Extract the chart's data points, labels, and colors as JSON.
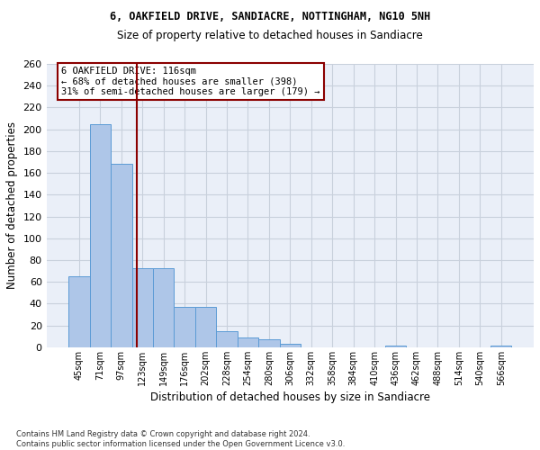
{
  "title1": "6, OAKFIELD DRIVE, SANDIACRE, NOTTINGHAM, NG10 5NH",
  "title2": "Size of property relative to detached houses in Sandiacre",
  "xlabel": "Distribution of detached houses by size in Sandiacre",
  "ylabel": "Number of detached properties",
  "bar_labels": [
    "45sqm",
    "71sqm",
    "97sqm",
    "123sqm",
    "149sqm",
    "176sqm",
    "202sqm",
    "228sqm",
    "254sqm",
    "280sqm",
    "306sqm",
    "332sqm",
    "358sqm",
    "384sqm",
    "410sqm",
    "436sqm",
    "462sqm",
    "488sqm",
    "514sqm",
    "540sqm",
    "566sqm"
  ],
  "bar_values": [
    65,
    205,
    168,
    73,
    73,
    37,
    37,
    15,
    9,
    7,
    3,
    0,
    0,
    0,
    0,
    2,
    0,
    0,
    0,
    0,
    2
  ],
  "bar_color": "#aec6e8",
  "bar_edge_color": "#5b9bd5",
  "vline_color": "darkred",
  "annotation_text": "6 OAKFIELD DRIVE: 116sqm\n← 68% of detached houses are smaller (398)\n31% of semi-detached houses are larger (179) →",
  "annotation_box_color": "white",
  "annotation_box_edge_color": "darkred",
  "ylim": [
    0,
    260
  ],
  "yticks": [
    0,
    20,
    40,
    60,
    80,
    100,
    120,
    140,
    160,
    180,
    200,
    220,
    240,
    260
  ],
  "grid_color": "#c8d0dc",
  "footnote": "Contains HM Land Registry data © Crown copyright and database right 2024.\nContains public sector information licensed under the Open Government Licence v3.0.",
  "bg_color": "#eaeff8"
}
